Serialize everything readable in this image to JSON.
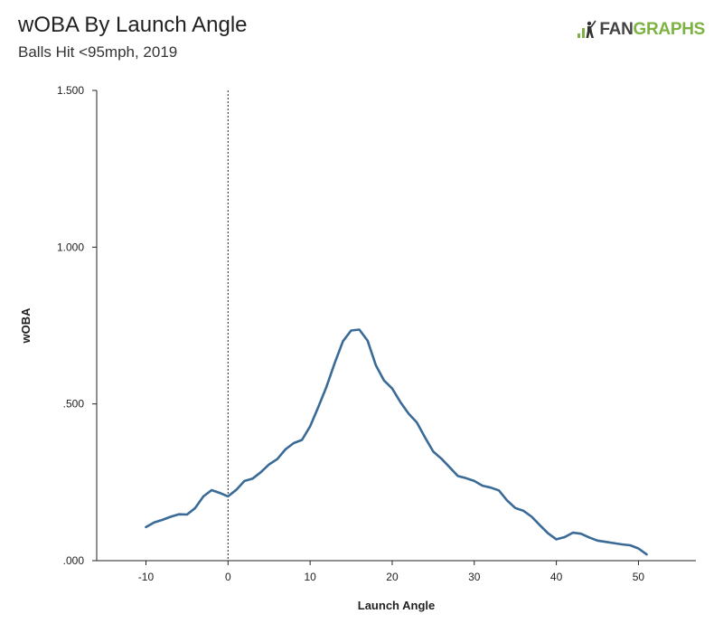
{
  "header": {
    "title": "wOBA By Launch Angle",
    "subtitle": "Balls Hit <95mph, 2019"
  },
  "logo": {
    "text_a": "FAN",
    "text_b": "GRAPHS",
    "icon": "fangraphs-batter-icon",
    "color_a": "#444444",
    "color_b": "#7cb342"
  },
  "colors": {
    "line": "#3a6a96",
    "axis": "#222222"
  },
  "chart_data": {
    "type": "line",
    "title": "wOBA By Launch Angle",
    "subtitle": "Balls Hit <95mph, 2019",
    "xlabel": "Launch Angle",
    "ylabel": "wOBA",
    "xlim": [
      -16,
      57
    ],
    "ylim": [
      0,
      1.5
    ],
    "x_ticks": [
      -10,
      0,
      10,
      20,
      30,
      40,
      50
    ],
    "x_tick_labels": [
      "-10",
      "0",
      "10",
      "20",
      "30",
      "40",
      "50"
    ],
    "y_ticks": [
      0,
      0.5,
      1.0,
      1.5
    ],
    "y_tick_labels": [
      ".000",
      ".500",
      "1.000",
      "1.500"
    ],
    "reference_line_x": 0,
    "grid": false,
    "series": [
      {
        "x": [
          -10,
          -9,
          -8,
          -7,
          -6,
          -5,
          -4,
          -3,
          -2,
          -1,
          0,
          1,
          2,
          3,
          4,
          5,
          6,
          7,
          8,
          9,
          10,
          11,
          12,
          13,
          14,
          15,
          16,
          17,
          18,
          19,
          20,
          21,
          22,
          23,
          24,
          25,
          26,
          27,
          28,
          29,
          30,
          31,
          32,
          33,
          34,
          35,
          36,
          37,
          38,
          39,
          40,
          41,
          42,
          43,
          44,
          45,
          46,
          47,
          48,
          49,
          50,
          51
        ],
        "y": [
          0.107,
          0.122,
          0.13,
          0.14,
          0.148,
          0.147,
          0.168,
          0.205,
          0.225,
          0.216,
          0.205,
          0.226,
          0.254,
          0.262,
          0.282,
          0.307,
          0.324,
          0.355,
          0.375,
          0.385,
          0.428,
          0.49,
          0.555,
          0.631,
          0.7,
          0.734,
          0.737,
          0.702,
          0.624,
          0.575,
          0.549,
          0.506,
          0.469,
          0.441,
          0.393,
          0.348,
          0.325,
          0.298,
          0.27,
          0.263,
          0.254,
          0.239,
          0.233,
          0.224,
          0.192,
          0.168,
          0.159,
          0.14,
          0.113,
          0.087,
          0.068,
          0.075,
          0.089,
          0.086,
          0.074,
          0.064,
          0.06,
          0.056,
          0.052,
          0.049,
          0.039,
          0.02
        ]
      }
    ]
  }
}
